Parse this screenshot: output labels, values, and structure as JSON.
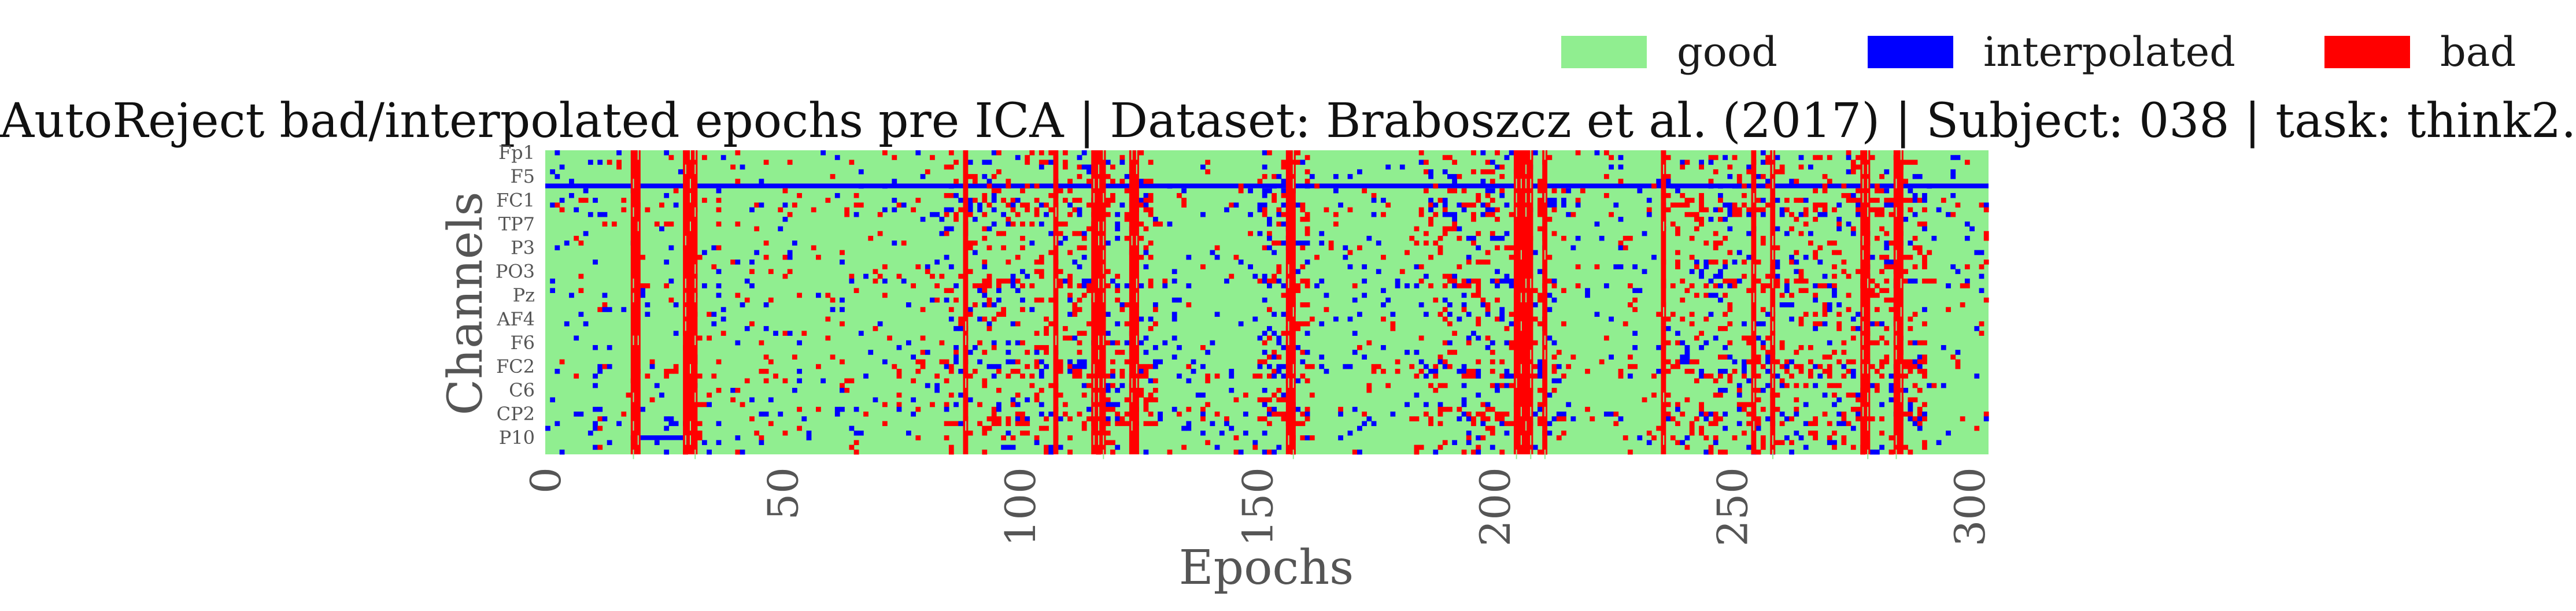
{
  "legend": {
    "items": [
      {
        "label": "good",
        "color": "#90ee90"
      },
      {
        "label": "interpolated",
        "color": "#0000ff"
      },
      {
        "label": "bad",
        "color": "#ff0000"
      }
    ]
  },
  "chart_data": {
    "type": "heatmap",
    "title": "AutoReject bad/interpolated epochs pre ICA | Dataset: Braboszcz et al. (2017) | Subject: 038 | task: think2.",
    "xlabel": "Epochs",
    "ylabel": "Channels",
    "xlim": [
      0,
      304
    ],
    "n_channels": 64,
    "x_ticks": [
      0,
      50,
      100,
      150,
      200,
      250,
      300
    ],
    "y_tick_labels": [
      "Fp1",
      "F5",
      "FC1",
      "TP7",
      "P3",
      "PO3",
      "Pz",
      "AF4",
      "F6",
      "FC2",
      "C6",
      "CP2",
      "P10"
    ],
    "y_tick_channel_index": [
      0,
      5,
      10,
      15,
      20,
      25,
      30,
      35,
      40,
      45,
      50,
      55,
      60
    ],
    "categories": [
      "good",
      "interpolated",
      "bad"
    ],
    "colors": {
      "good": "#90ee90",
      "interpolated": "#0000ff",
      "bad": "#ff0000"
    },
    "fully_bad_epochs": [
      18,
      19,
      29,
      30,
      31,
      88,
      107,
      115,
      116,
      117,
      123,
      124,
      156,
      157,
      204,
      205,
      206,
      207,
      210,
      235,
      254,
      258,
      277,
      278,
      284,
      285
    ],
    "interpolated_channel_runs": [
      {
        "channel": 7,
        "from": 0,
        "to": 304
      },
      {
        "channel": 60,
        "from": 18,
        "to": 31
      }
    ],
    "high_activity_epoch_ranges": [
      [
        84,
        128
      ],
      [
        150,
        160
      ],
      [
        183,
        212
      ],
      [
        235,
        290
      ]
    ],
    "high_activity_channels": [
      10,
      11,
      12,
      13,
      27,
      28,
      44,
      45,
      46,
      47,
      55,
      56,
      57
    ]
  }
}
